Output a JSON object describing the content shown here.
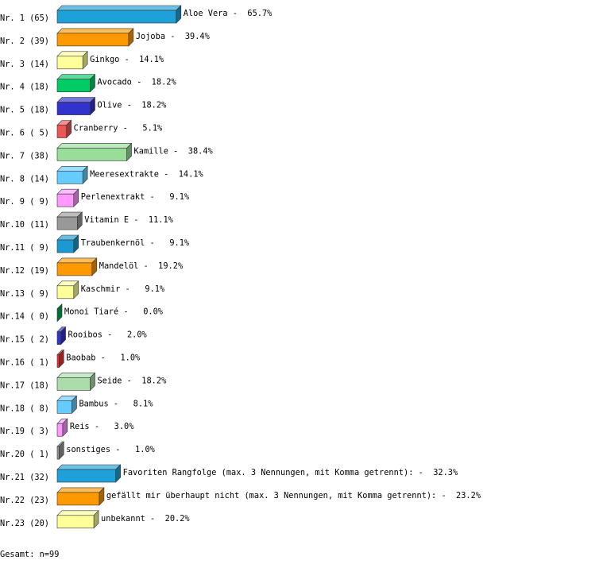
{
  "chart_data": {
    "type": "bar3d",
    "categories": [
      "Nr. 1 (65)",
      "Nr. 2 (39)",
      "Nr. 3 (14)",
      "Nr. 4 (18)",
      "Nr. 5 (18)",
      "Nr. 6 ( 5)",
      "Nr. 7 (38)",
      "Nr. 8 (14)",
      "Nr. 9 ( 9)",
      "Nr.10 (11)",
      "Nr.11 ( 9)",
      "Nr.12 (19)",
      "Nr.13 ( 9)",
      "Nr.14 ( 0)",
      "Nr.15 ( 2)",
      "Nr.16 ( 1)",
      "Nr.17 (18)",
      "Nr.18 ( 8)",
      "Nr.19 ( 3)",
      "Nr.20 ( 1)",
      "Nr.21 (32)",
      "Nr.22 (23)",
      "Nr.23 (20)"
    ],
    "values": [
      65.7,
      39.4,
      14.1,
      18.2,
      18.2,
      5.1,
      38.4,
      14.1,
      9.1,
      11.1,
      9.1,
      19.2,
      9.1,
      0.0,
      2.0,
      1.0,
      18.2,
      8.1,
      3.0,
      1.0,
      32.3,
      23.2,
      20.2
    ],
    "value_labels": [
      "Aloe Vera -  65.7%",
      "Jojoba -  39.4%",
      "Ginkgo -  14.1%",
      "Avocado -  18.2%",
      "Olive -  18.2%",
      "Cranberry -   5.1%",
      "Kamille -  38.4%",
      "Meeresextrakte -  14.1%",
      "Perlenextrakt -   9.1%",
      "Vitamin E -  11.1%",
      "Traubenkernöl -   9.1%",
      "Mandelöl -  19.2%",
      "Kaschmir -   9.1%",
      "Monoi Tiaré -   0.0%",
      "Rooibos -   2.0%",
      "Baobab -   1.0%",
      "Seide -  18.2%",
      "Bambus -   8.1%",
      "Reis -   3.0%",
      "sonstiges -   1.0%",
      "Favoriten Rangfolge (max. 3 Nennungen, mit Komma getrennt): -  32.3%",
      "gefällt mir überhaupt nicht (max. 3 Nennungen, mit Komma getrennt): -  23.2%",
      "unbekannt -  20.2%"
    ],
    "colors": [
      "#1ea0d8",
      "#ff9900",
      "#ffff99",
      "#00cc66",
      "#3333cc",
      "#ee5555",
      "#99dd99",
      "#66ccff",
      "#ff99ff",
      "#999999",
      "#1a9ad0",
      "#ff9900",
      "#ffff99",
      "#00aa55",
      "#3333cc",
      "#ee3333",
      "#aaddaa",
      "#66ccff",
      "#ff99ff",
      "#999999",
      "#1ea0d8",
      "#ff9900",
      "#ffff99"
    ],
    "footer": "Gesamt: n=99"
  }
}
